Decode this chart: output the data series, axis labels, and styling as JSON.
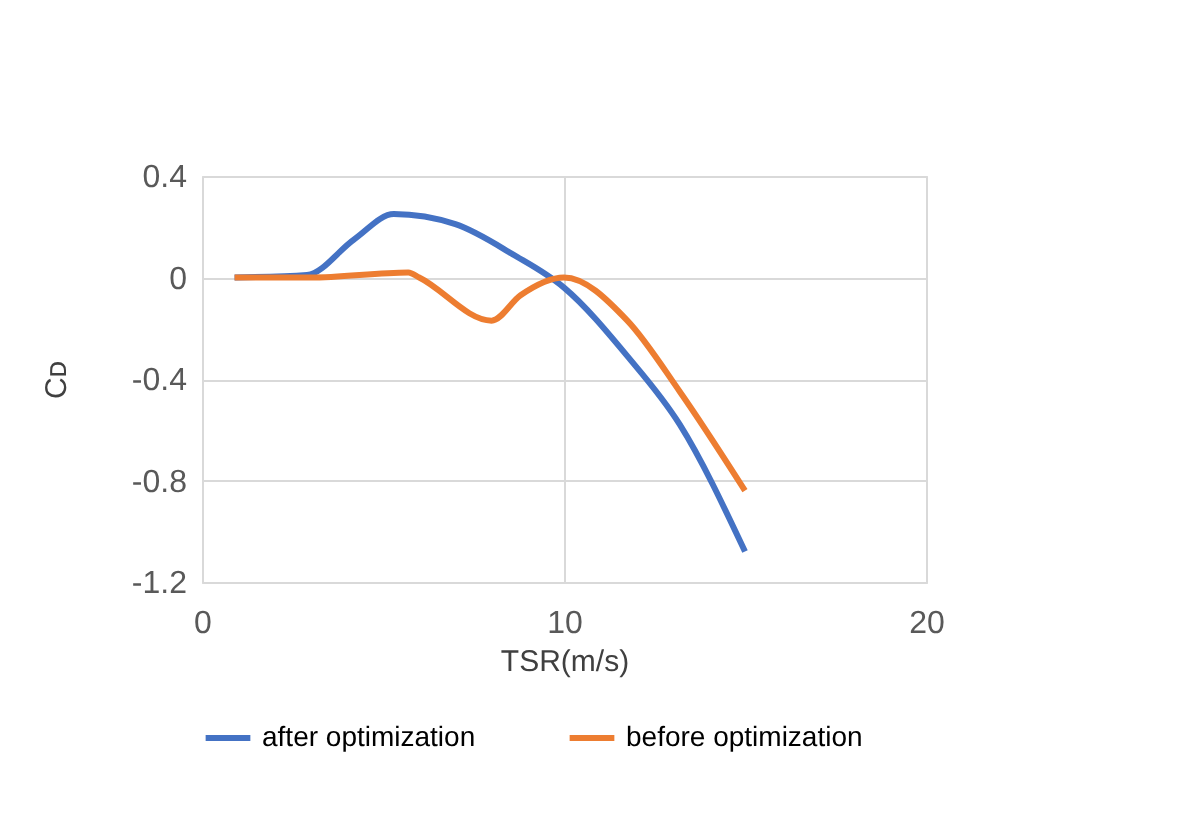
{
  "chart_data": {
    "type": "line",
    "xlabel": "TSR(m/s)",
    "ylabel": "Cᴅ",
    "xlim": [
      0,
      20
    ],
    "xticks": [
      0,
      10,
      20
    ],
    "ylim": [
      -1.2,
      0.4
    ],
    "yticks": [
      -1.2,
      -0.8,
      -0.4,
      0,
      0.4
    ],
    "grid": true,
    "legend": "bottom",
    "marker": "none",
    "line_style": "solid",
    "series": [
      {
        "name": "after optimization",
        "color": "#4472c4",
        "x": [
          0.9,
          2.9,
          4.2,
          5.3,
          7,
          8.6,
          10,
          11.75,
          13.2,
          15
        ],
        "values": [
          0,
          0.01,
          0.15,
          0.25,
          0.21,
          0.09,
          -0.04,
          -0.31,
          -0.58,
          -1.08
        ]
      },
      {
        "name": "before optimization",
        "color": "#ed7d31",
        "x": [
          0.9,
          3,
          5.7,
          6.0,
          8.0,
          8.8,
          10,
          11.75,
          13.2,
          15
        ],
        "values": [
          0,
          0,
          0.02,
          0.0,
          -0.17,
          -0.07,
          0,
          -0.17,
          -0.45,
          -0.84
        ]
      }
    ]
  }
}
